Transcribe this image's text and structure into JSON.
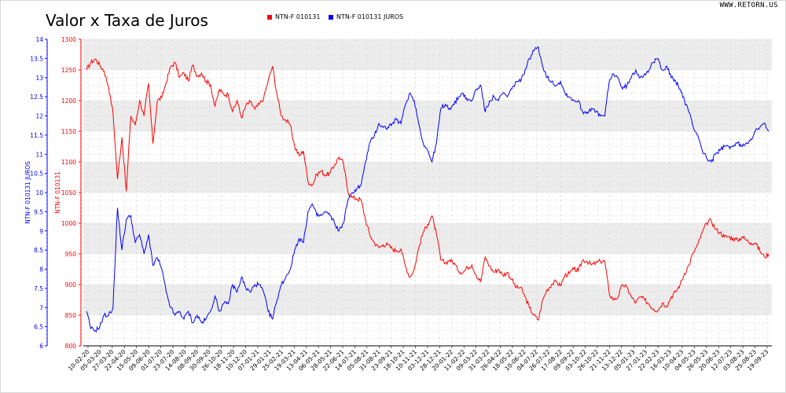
{
  "page": {
    "title": "Valor x Taxa de Juros",
    "watermark": "WWW.RETORN.US"
  },
  "colors": {
    "series1": "#ff0000",
    "series2": "#0000ff",
    "grid": "#d4d4d4",
    "band": "#ececec"
  },
  "chart_data": {
    "type": "line",
    "title": "Valor x Taxa de Juros",
    "grid": true,
    "legend_position": "top",
    "x_ticks": [
      "10-02-20",
      "05-03-20",
      "27-03-20",
      "22-04-20",
      "15-05-20",
      "09-06-20",
      "01-07-20",
      "23-07-20",
      "14-08-20",
      "08-09-20",
      "30-09-20",
      "26-10-20",
      "18-11-20",
      "10-12-20",
      "07-01-21",
      "29-01-21",
      "25-02-21",
      "19-03-21",
      "13-04-21",
      "06-05-21",
      "28-05-21",
      "22-06-21",
      "14-07-21",
      "05-08-21",
      "31-08-21",
      "23-09-21",
      "18-10-21",
      "10-11-21",
      "03-12-21",
      "28-12-21",
      "20-01-22",
      "11-02-22",
      "09-03-22",
      "31-03-22",
      "26-04-22",
      "18-05-22",
      "10-06-22",
      "04-07-22",
      "26-07-22",
      "17-08-22",
      "09-09-22",
      "03-10-22",
      "26-10-22",
      "21-11-22",
      "13-12-22",
      "05-01-23",
      "27-01-23",
      "22-02-23",
      "16-03-23",
      "10-04-23",
      "04-05-23",
      "26-05-23",
      "20-06-23",
      "12-07-23",
      "03-08-23",
      "25-08-23",
      "19-09-23"
    ],
    "y_left_outer": {
      "label": "NTN-F 010131 JUROS",
      "range": [
        6,
        14
      ],
      "ticks": [
        "6",
        "6.5",
        "7",
        "7.5",
        "8",
        "8.5",
        "9",
        "9.5",
        "10",
        "10.5",
        "11",
        "11.5",
        "12",
        "12.5",
        "13",
        "13.5",
        "14"
      ]
    },
    "y_left_inner": {
      "label": "NTN-F 010131",
      "range": [
        800,
        1300
      ],
      "ticks": [
        "800",
        "850",
        "900",
        "950",
        "1000",
        "1050",
        "1100",
        "1150",
        "1200",
        "1250",
        "1300"
      ]
    },
    "series": [
      {
        "name": "NTN-F 010131",
        "axis": "inner",
        "color": "#ff0000",
        "values": [
          1250,
          1262,
          1268,
          1258,
          1248,
          1222,
          1180,
          1072,
          1140,
          1052,
          1175,
          1160,
          1200,
          1175,
          1228,
          1130,
          1200,
          1205,
          1230,
          1255,
          1262,
          1238,
          1245,
          1232,
          1258,
          1240,
          1245,
          1232,
          1226,
          1190,
          1218,
          1210,
          1210,
          1182,
          1200,
          1172,
          1192,
          1198,
          1186,
          1194,
          1204,
          1232,
          1256,
          1210,
          1175,
          1168,
          1160,
          1125,
          1110,
          1118,
          1068,
          1062,
          1080,
          1085,
          1078,
          1082,
          1095,
          1108,
          1098,
          1052,
          1042,
          1040,
          1038,
          1005,
          980,
          968,
          960,
          965,
          965,
          958,
          955,
          958,
          930,
          912,
          925,
          960,
          985,
          998,
          1012,
          982,
          940,
          935,
          940,
          935,
          922,
          920,
          928,
          932,
          915,
          905,
          945,
          930,
          920,
          925,
          915,
          920,
          908,
          895,
          895,
          880,
          862,
          850,
          842,
          875,
          892,
          900,
          905,
          898,
          915,
          918,
          925,
          922,
          940,
          938,
          932,
          935,
          938,
          938,
          885,
          875,
          880,
          900,
          895,
          880,
          870,
          880,
          875,
          868,
          860,
          858,
          870,
          865,
          880,
          888,
          900,
          918,
          932,
          952,
          965,
          985,
          1000,
          1005,
          990,
          985,
          978,
          978,
          975,
          972,
          978,
          972,
          968,
          968,
          955,
          945,
          950
        ]
      },
      {
        "name": "NTN-F 010131 JUROS",
        "axis": "outer",
        "color": "#0000ff",
        "values": [
          6.9,
          6.45,
          6.4,
          6.5,
          6.8,
          6.8,
          7.0,
          9.6,
          8.5,
          9.3,
          9.4,
          8.7,
          8.9,
          8.4,
          8.9,
          8.1,
          8.3,
          8.0,
          7.4,
          7.0,
          6.8,
          6.9,
          6.7,
          6.9,
          6.6,
          6.8,
          6.6,
          6.7,
          6.9,
          7.3,
          6.9,
          7.1,
          7.1,
          7.6,
          7.4,
          7.8,
          7.5,
          7.4,
          7.6,
          7.6,
          7.4,
          6.9,
          6.7,
          7.2,
          7.6,
          7.8,
          8.0,
          8.5,
          8.8,
          8.7,
          9.5,
          9.7,
          9.4,
          9.4,
          9.5,
          9.4,
          9.2,
          9.0,
          9.2,
          9.8,
          10.0,
          10.1,
          10.2,
          10.8,
          11.3,
          11.5,
          11.8,
          11.7,
          11.7,
          11.8,
          11.9,
          11.8,
          12.3,
          12.6,
          12.4,
          11.8,
          11.3,
          11.1,
          10.8,
          11.3,
          12.2,
          12.3,
          12.2,
          12.3,
          12.5,
          12.6,
          12.4,
          12.4,
          12.7,
          12.8,
          12.1,
          12.4,
          12.5,
          12.4,
          12.6,
          12.5,
          12.7,
          12.9,
          12.9,
          13.2,
          13.5,
          13.7,
          13.8,
          13.3,
          13.0,
          12.9,
          12.8,
          12.9,
          12.6,
          12.5,
          12.4,
          12.4,
          12.1,
          12.1,
          12.2,
          12.1,
          12.0,
          12.0,
          12.9,
          13.1,
          13.0,
          12.7,
          12.8,
          13.0,
          13.2,
          13.0,
          13.1,
          13.2,
          13.4,
          13.5,
          13.2,
          13.3,
          13.0,
          12.9,
          12.7,
          12.4,
          12.1,
          11.7,
          11.5,
          11.1,
          10.9,
          10.8,
          11.0,
          11.1,
          11.2,
          11.2,
          11.2,
          11.3,
          11.2,
          11.3,
          11.4,
          11.6,
          11.7,
          11.8,
          11.6
        ]
      }
    ]
  }
}
